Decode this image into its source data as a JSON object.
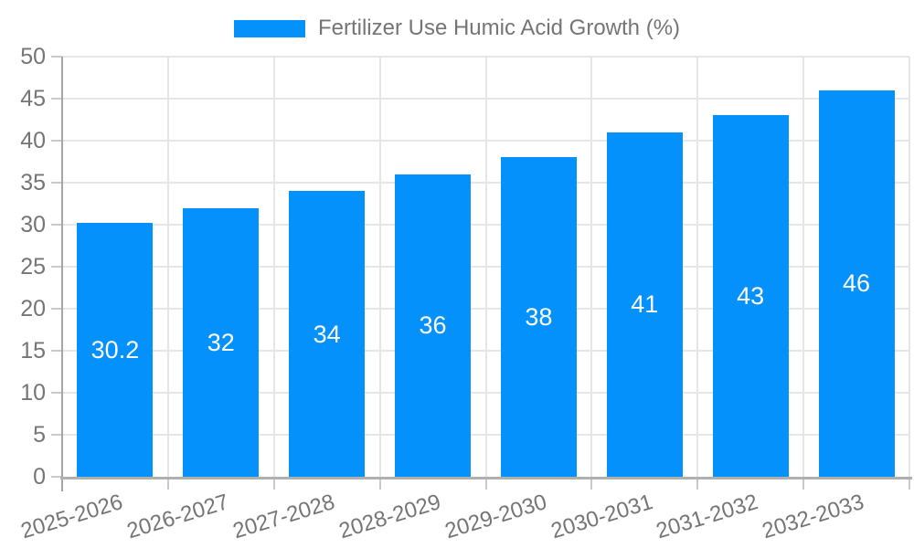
{
  "legend": {
    "label": "Fertilizer Use Humic Acid Growth (%)"
  },
  "chart_data": {
    "type": "bar",
    "title": "",
    "legend_entries": [
      "Fertilizer Use Humic Acid Growth (%)"
    ],
    "legend_position": "top-center",
    "categories": [
      "2025-2026",
      "2026-2027",
      "2027-2028",
      "2028-2029",
      "2029-2030",
      "2030-2031",
      "2031-2032",
      "2032-2033"
    ],
    "series": [
      {
        "name": "Fertilizer Use Humic Acid Growth (%)",
        "values": [
          30.2,
          32,
          34,
          36,
          38,
          41,
          43,
          46
        ]
      }
    ],
    "values": [
      30.2,
      32,
      34,
      36,
      38,
      41,
      43,
      46
    ],
    "bar_labels": [
      "30.2",
      "32",
      "34",
      "36",
      "38",
      "41",
      "43",
      "46"
    ],
    "xlabel": "",
    "ylabel": "",
    "ylim": [
      0,
      50
    ],
    "yticks": [
      0,
      5,
      10,
      15,
      20,
      25,
      30,
      35,
      40,
      45,
      50
    ],
    "grid": true,
    "x_tick_rotation_deg": -17,
    "colors": {
      "bar": "#0591fc",
      "grid": "#e6e6e6",
      "tick": "#c9c9c9",
      "axis": "#b0b0b0",
      "axis_y": "#a6a6a6",
      "tick_text": "#757575",
      "bar_label_text": "#ffffff",
      "background": "#ffffff"
    }
  }
}
